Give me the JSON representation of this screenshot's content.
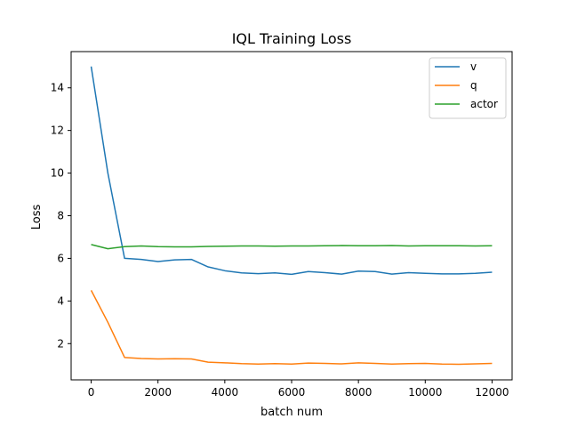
{
  "chart_data": {
    "type": "line",
    "title": "IQL Training Loss",
    "xlabel": "batch num",
    "ylabel": "Loss",
    "xlim": [
      -600,
      12600
    ],
    "ylim": [
      0.3,
      15.7
    ],
    "xticks": [
      0,
      2000,
      4000,
      6000,
      8000,
      10000,
      12000
    ],
    "yticks": [
      2,
      4,
      6,
      8,
      10,
      12,
      14
    ],
    "grid": false,
    "legend_position": "top-right",
    "x": [
      0,
      500,
      1000,
      1500,
      2000,
      2500,
      3000,
      3500,
      4000,
      4500,
      5000,
      5500,
      6000,
      6500,
      7000,
      7500,
      8000,
      8500,
      9000,
      9500,
      10000,
      10500,
      11000,
      11500,
      12000
    ],
    "series": [
      {
        "name": "v",
        "color": "#1f77b4",
        "values": [
          15.0,
          10.0,
          6.0,
          5.95,
          5.85,
          5.93,
          5.95,
          5.6,
          5.42,
          5.32,
          5.28,
          5.32,
          5.25,
          5.38,
          5.33,
          5.26,
          5.4,
          5.38,
          5.26,
          5.33,
          5.3,
          5.27,
          5.27,
          5.3,
          5.35
        ]
      },
      {
        "name": "q",
        "color": "#ff7f0e",
        "values": [
          4.5,
          3.0,
          1.35,
          1.3,
          1.28,
          1.29,
          1.28,
          1.13,
          1.1,
          1.06,
          1.04,
          1.06,
          1.04,
          1.09,
          1.07,
          1.05,
          1.1,
          1.07,
          1.04,
          1.06,
          1.07,
          1.04,
          1.03,
          1.05,
          1.07
        ]
      },
      {
        "name": "actor",
        "color": "#2ca02c",
        "values": [
          6.65,
          6.45,
          6.55,
          6.58,
          6.55,
          6.54,
          6.54,
          6.56,
          6.57,
          6.58,
          6.58,
          6.57,
          6.58,
          6.58,
          6.59,
          6.6,
          6.59,
          6.59,
          6.6,
          6.58,
          6.59,
          6.59,
          6.59,
          6.58,
          6.59
        ]
      }
    ]
  }
}
